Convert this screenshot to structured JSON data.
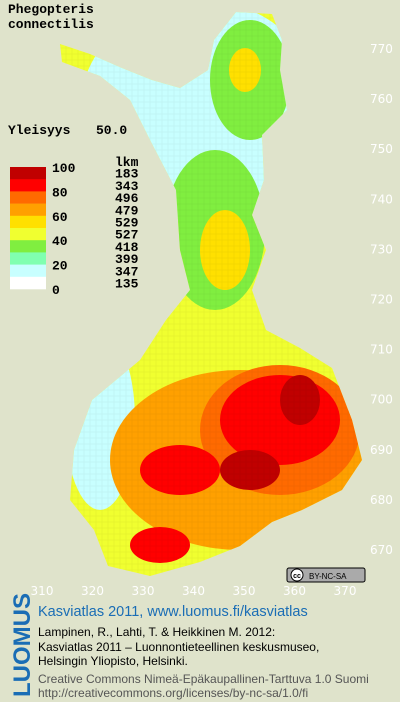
{
  "title": [
    "Phegopteris",
    "connectilis"
  ],
  "frequency_label": "Yleisyys",
  "frequency_value": "50.0",
  "legend": {
    "header": "lkm",
    "value_labels": [
      "100",
      "80",
      "60",
      "40",
      "20",
      "0"
    ],
    "classes": [
      {
        "color": "#c00000",
        "count": "183"
      },
      {
        "color": "#ff0000",
        "count": "343"
      },
      {
        "color": "#ff6a00",
        "count": "496"
      },
      {
        "color": "#ffa000",
        "count": "479"
      },
      {
        "color": "#ffe000",
        "count": "529"
      },
      {
        "color": "#f0ff30",
        "count": "527"
      },
      {
        "color": "#80ee40",
        "count": "418"
      },
      {
        "color": "#80ffb0",
        "count": "399"
      },
      {
        "color": "#c8ffff",
        "count": "347"
      },
      {
        "color": "#ffffff",
        "count": "135"
      }
    ]
  },
  "x_labels": [
    "310",
    "320",
    "330",
    "340",
    "350",
    "360",
    "370"
  ],
  "y_labels": [
    "770",
    "760",
    "750",
    "740",
    "730",
    "720",
    "710",
    "700",
    "690",
    "680",
    "670"
  ],
  "license_badge": "BY-NC-SA",
  "footer": {
    "brand": "LUOMUS",
    "headline": "Kasviatlas 2011, www.luomus.fi/kasviatlas",
    "citation": [
      "Lampinen, R., Lahti, T. & Heikkinen M. 2012:",
      "Kasviatlas 2011 – Luonnontieteellinen keskusmuseo,",
      "Helsingin Yliopisto, Helsinki."
    ],
    "license": [
      "Creative Commons Nimeä-Epäkaupallinen-Tarttuva 1.0 Suomi",
      "http://creativecommons.org/licenses/by-nc-sa/1.0/fi"
    ]
  }
}
